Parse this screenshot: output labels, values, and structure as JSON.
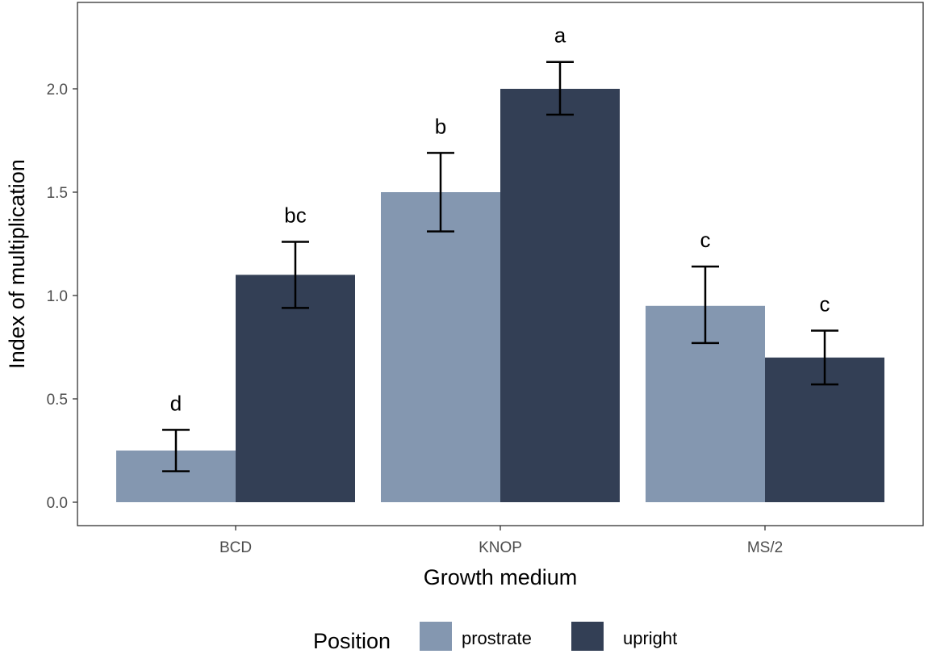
{
  "chart_data": {
    "type": "bar",
    "title": "",
    "xlabel": "Growth medium",
    "ylabel": "Index of multiplication",
    "ylim": [
      -0.12,
      2.42
    ],
    "yticks": [
      0.0,
      0.5,
      1.0,
      1.5,
      2.0
    ],
    "ytick_labels": [
      "0.0",
      "0.5",
      "1.0",
      "1.5",
      "2.0"
    ],
    "categories": [
      "BCD",
      "KNOP",
      "MS/2"
    ],
    "grid": false,
    "legend": {
      "title": "Position",
      "placement": "bottom"
    },
    "series": [
      {
        "name": "prostrate",
        "color": "#8497b0",
        "values": [
          0.25,
          1.5,
          0.95
        ],
        "error_low": [
          0.15,
          1.31,
          0.77
        ],
        "error_high": [
          0.35,
          1.69,
          1.14
        ],
        "letters": [
          "d",
          "b",
          "c"
        ]
      },
      {
        "name": "upright",
        "color": "#333f55",
        "values": [
          1.1,
          2.0,
          0.7
        ],
        "error_low": [
          0.94,
          1.875,
          0.57
        ],
        "error_high": [
          1.26,
          2.13,
          0.83
        ],
        "letters": [
          "bc",
          "a",
          "c"
        ]
      }
    ]
  }
}
